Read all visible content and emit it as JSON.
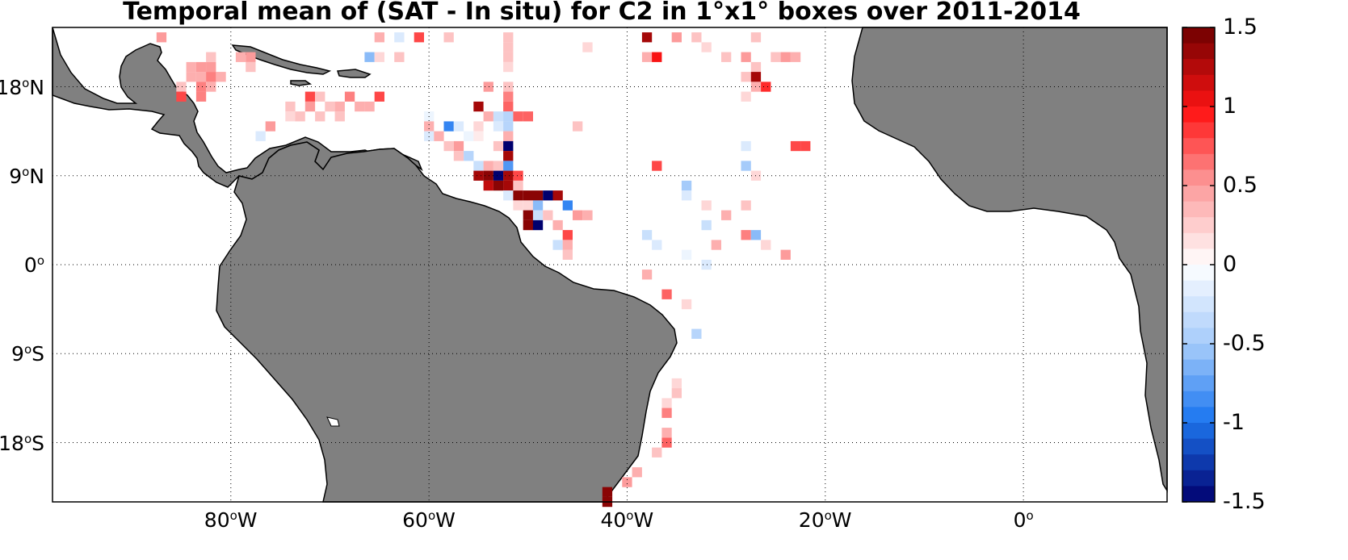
{
  "title": "Temporal mean of (SAT - In situ) for C2 in 1°x1° boxes over 2011-2014",
  "map": {
    "lon_range": [
      -98,
      14.5
    ],
    "lat_range": [
      -24,
      24
    ],
    "land_color": "#808080",
    "ocean_color": "#ffffff",
    "grid": "dotted",
    "lat_ticks": [
      {
        "lat": 18,
        "value": "18",
        "deg": "o",
        "hemi": "N"
      },
      {
        "lat": 9,
        "value": "9",
        "deg": "o",
        "hemi": "N"
      },
      {
        "lat": 0,
        "value": "0",
        "deg": "o",
        "hemi": ""
      },
      {
        "lat": -9,
        "value": "9",
        "deg": "o",
        "hemi": "S"
      },
      {
        "lat": -18,
        "value": "18",
        "deg": "o",
        "hemi": "S"
      }
    ],
    "lon_ticks": [
      {
        "lon": -80,
        "value": "80",
        "deg": "o",
        "hemi": "W"
      },
      {
        "lon": -60,
        "value": "60",
        "deg": "o",
        "hemi": "W"
      },
      {
        "lon": -40,
        "value": "40",
        "deg": "o",
        "hemi": "W"
      },
      {
        "lon": -20,
        "value": "20",
        "deg": "o",
        "hemi": "W"
      },
      {
        "lon": 0,
        "value": "0",
        "deg": "o",
        "hemi": ""
      }
    ]
  },
  "colorbar": {
    "min": -1.5,
    "max": 1.5,
    "steps": 30,
    "ticks": [
      {
        "value": 1.5,
        "label": "1.5"
      },
      {
        "value": 1,
        "label": "1"
      },
      {
        "value": 0.5,
        "label": "0.5"
      },
      {
        "value": 0,
        "label": "0"
      },
      {
        "value": -0.5,
        "label": "-0.5"
      },
      {
        "value": -1,
        "label": "-1"
      },
      {
        "value": -1.5,
        "label": "-1.5"
      }
    ]
  },
  "chart_data": {
    "type": "heatmap",
    "description_units": "lon (deg E), lat (deg N), value (SAT - In situ)",
    "cells": [
      [
        -87,
        23,
        0.5
      ],
      [
        -65,
        23,
        0.4
      ],
      [
        -63,
        23,
        -0.2
      ],
      [
        -61,
        23,
        0.8
      ],
      [
        -58,
        23,
        0.3
      ],
      [
        -52,
        23,
        0.3
      ],
      [
        -38,
        23,
        1.3
      ],
      [
        -35,
        23,
        0.5
      ],
      [
        -33,
        23,
        0.3
      ],
      [
        -27,
        23,
        0.3
      ],
      [
        -44,
        22,
        0.2
      ],
      [
        -52,
        22,
        0.3
      ],
      [
        -32,
        22,
        0.2
      ],
      [
        -82,
        21,
        0.3
      ],
      [
        -79,
        21,
        0.4
      ],
      [
        -78,
        21,
        0.5
      ],
      [
        -66,
        21,
        -0.6
      ],
      [
        -65,
        21,
        0.2
      ],
      [
        -63,
        21,
        0.3
      ],
      [
        -52,
        21,
        0.3
      ],
      [
        -38,
        21,
        0.4
      ],
      [
        -37,
        21,
        1.0
      ],
      [
        -30,
        21,
        0.3
      ],
      [
        -28,
        21,
        0.5
      ],
      [
        -25,
        21,
        0.3
      ],
      [
        -24,
        21,
        0.5
      ],
      [
        -23,
        21,
        0.4
      ],
      [
        -84,
        20,
        0.4
      ],
      [
        -83,
        20,
        0.5
      ],
      [
        -82,
        20,
        0.5
      ],
      [
        -78,
        20,
        0.3
      ],
      [
        -52,
        20,
        0.2
      ],
      [
        -27,
        20,
        0.3
      ],
      [
        -84,
        19,
        0.4
      ],
      [
        -83,
        19,
        0.4
      ],
      [
        -82,
        19,
        0.6
      ],
      [
        -81,
        19,
        0.4
      ],
      [
        -28,
        19,
        0.3
      ],
      [
        -27,
        19,
        1.3
      ],
      [
        -85,
        18,
        0.3
      ],
      [
        -83,
        18,
        0.6
      ],
      [
        -82,
        18,
        0.4
      ],
      [
        -54,
        18,
        0.5
      ],
      [
        -52,
        18,
        0.3
      ],
      [
        -27,
        18,
        0.4
      ],
      [
        -26,
        18,
        0.9
      ],
      [
        -85,
        17,
        0.8
      ],
      [
        -83,
        17,
        0.6
      ],
      [
        -72,
        17,
        0.8
      ],
      [
        -71,
        17,
        0.3
      ],
      [
        -68,
        17,
        0.6
      ],
      [
        -65,
        17,
        0.8
      ],
      [
        -52,
        17,
        0.6
      ],
      [
        -28,
        17,
        0.2
      ],
      [
        -74,
        16,
        0.3
      ],
      [
        -72,
        16,
        0.5
      ],
      [
        -70,
        16,
        0.3
      ],
      [
        -69,
        16,
        0.4
      ],
      [
        -67,
        16,
        0.4
      ],
      [
        -66,
        16,
        0.4
      ],
      [
        -55,
        16,
        1.3
      ],
      [
        -52,
        16,
        0.7
      ],
      [
        -74,
        15,
        0.2
      ],
      [
        -73,
        15,
        0.3
      ],
      [
        -71,
        15,
        0.3
      ],
      [
        -69,
        15,
        0.3
      ],
      [
        -60,
        15,
        -0.1
      ],
      [
        -54,
        15,
        0.4
      ],
      [
        -53,
        15,
        -0.3
      ],
      [
        -52,
        15,
        -0.4
      ],
      [
        -51,
        15,
        0.7
      ],
      [
        -50,
        15,
        0.7
      ],
      [
        -76,
        14,
        0.5
      ],
      [
        -60,
        14,
        0.4
      ],
      [
        -58,
        14,
        -0.9
      ],
      [
        -57,
        14,
        -0.2
      ],
      [
        -55,
        14,
        0.2
      ],
      [
        -53,
        14,
        -0.2
      ],
      [
        -52,
        14,
        -0.4
      ],
      [
        -45,
        14,
        0.3
      ],
      [
        -77,
        13,
        -0.2
      ],
      [
        -60,
        13,
        -0.2
      ],
      [
        -59,
        13,
        0.4
      ],
      [
        -56,
        13,
        -0.1
      ],
      [
        -55,
        13,
        0.1
      ],
      [
        -52,
        13,
        0.4
      ],
      [
        -58,
        12,
        0.3
      ],
      [
        -57,
        12,
        0.5
      ],
      [
        -53,
        12,
        0.3
      ],
      [
        -52,
        12,
        -1.5
      ],
      [
        -28,
        12,
        -0.2
      ],
      [
        -23,
        12,
        0.8
      ],
      [
        -22,
        12,
        0.8
      ],
      [
        -57,
        11,
        0.3
      ],
      [
        -56,
        11,
        -0.4
      ],
      [
        -52,
        11,
        1.3
      ],
      [
        -55,
        10,
        -0.3
      ],
      [
        -54,
        10,
        0.4
      ],
      [
        -53,
        10,
        0.3
      ],
      [
        -52,
        10,
        -0.8
      ],
      [
        -37,
        10,
        0.8
      ],
      [
        -28,
        10,
        -0.5
      ],
      [
        -55,
        9,
        1.3
      ],
      [
        -54,
        9,
        1.4
      ],
      [
        -53,
        9,
        -1.5
      ],
      [
        -52,
        9,
        1.3
      ],
      [
        -51,
        9,
        0.8
      ],
      [
        -27,
        9,
        0.2
      ],
      [
        -54,
        8,
        1.2
      ],
      [
        -53,
        8,
        1.4
      ],
      [
        -52,
        8,
        1.3
      ],
      [
        -51,
        8,
        0.3
      ],
      [
        -34,
        8,
        -0.5
      ],
      [
        -52,
        7,
        -0.2
      ],
      [
        -51,
        7,
        1.4
      ],
      [
        -50,
        7,
        1.4
      ],
      [
        -49,
        7,
        1.4
      ],
      [
        -48,
        7,
        -1.5
      ],
      [
        -47,
        7,
        1.3
      ],
      [
        -34,
        7,
        -0.2
      ],
      [
        -51,
        6,
        0.2
      ],
      [
        -50,
        6,
        0.2
      ],
      [
        -49,
        6,
        -0.6
      ],
      [
        -46,
        6,
        -0.9
      ],
      [
        -32,
        6,
        0.2
      ],
      [
        -28,
        6,
        0.3
      ],
      [
        -50,
        5,
        1.4
      ],
      [
        -49,
        5,
        -0.3
      ],
      [
        -48,
        5,
        0.3
      ],
      [
        -45,
        5,
        0.5
      ],
      [
        -44,
        5,
        0.4
      ],
      [
        -30,
        5,
        0.4
      ],
      [
        -50,
        4,
        1.4
      ],
      [
        -49,
        4,
        -1.5
      ],
      [
        -47,
        4,
        0.4
      ],
      [
        -32,
        4,
        -0.3
      ],
      [
        -46,
        3,
        0.8
      ],
      [
        -38,
        3,
        -0.3
      ],
      [
        -28,
        3,
        0.6
      ],
      [
        -27,
        3,
        -0.6
      ],
      [
        -47,
        2,
        -0.3
      ],
      [
        -46,
        2,
        0.4
      ],
      [
        -37,
        2,
        -0.2
      ],
      [
        -31,
        2,
        0.4
      ],
      [
        -26,
        2,
        0.2
      ],
      [
        -46,
        1,
        0.3
      ],
      [
        -34,
        1,
        -0.1
      ],
      [
        -24,
        1,
        0.5
      ],
      [
        -32,
        0,
        -0.2
      ],
      [
        -38,
        -1,
        0.4
      ],
      [
        -36,
        -3,
        0.7
      ],
      [
        -34,
        -4,
        0.2
      ],
      [
        -33,
        -7,
        -0.4
      ],
      [
        -35,
        -12,
        0.2
      ],
      [
        -35,
        -13,
        0.3
      ],
      [
        -36,
        -14,
        0.2
      ],
      [
        -36,
        -15,
        0.6
      ],
      [
        -36,
        -17,
        0.4
      ],
      [
        -36,
        -18,
        0.7
      ],
      [
        -37,
        -19,
        0.3
      ],
      [
        -39,
        -21,
        0.4
      ],
      [
        -40,
        -22,
        0.5
      ],
      [
        -42,
        -23,
        1.4
      ],
      [
        -42,
        -24,
        1.4
      ]
    ]
  }
}
